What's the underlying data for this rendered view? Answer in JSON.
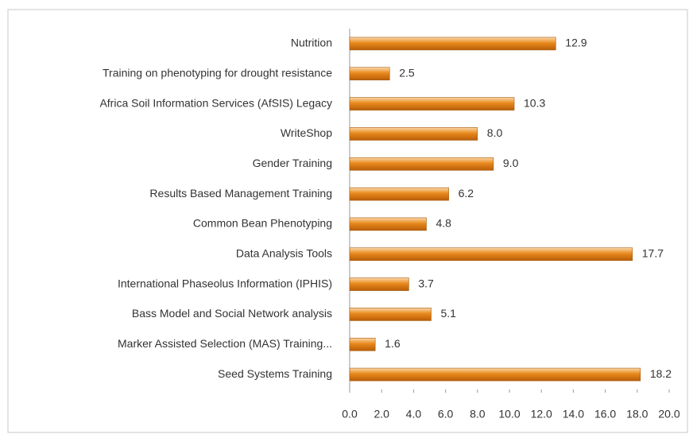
{
  "chart_data": {
    "type": "bar",
    "orientation": "horizontal",
    "categories": [
      "Nutrition",
      "Training on phenotyping for drought resistance",
      "Africa Soil Information Services (AfSIS) Legacy",
      "WriteShop",
      "Gender Training",
      "Results Based Management Training",
      "Common Bean Phenotyping",
      "Data Analysis Tools",
      "International Phaseolus Information  (IPHIS)",
      "Bass Model and Social Network analysis",
      "Marker Assisted Selection (MAS) Training...",
      "Seed Systems Training"
    ],
    "values": [
      12.9,
      2.5,
      10.3,
      8.0,
      9.0,
      6.2,
      4.8,
      17.7,
      3.7,
      5.1,
      1.6,
      18.2
    ],
    "value_labels": [
      "12.9",
      "2.5",
      "10.3",
      "8.0",
      "9.0",
      "6.2",
      "4.8",
      "17.7",
      "3.7",
      "5.1",
      "1.6",
      "18.2"
    ],
    "color": "#e8891c",
    "xlim": [
      0,
      20
    ],
    "xticks": [
      {
        "value": 0,
        "label": "0.0"
      },
      {
        "value": 2,
        "label": "2.0"
      },
      {
        "value": 4,
        "label": "4.0"
      },
      {
        "value": 6,
        "label": "6.0"
      },
      {
        "value": 8,
        "label": "8.0"
      },
      {
        "value": 10,
        "label": "10.0"
      },
      {
        "value": 12,
        "label": "12.0"
      },
      {
        "value": 14,
        "label": "14.0"
      },
      {
        "value": 16,
        "label": "16.0"
      },
      {
        "value": 18,
        "label": "18.0"
      },
      {
        "value": 20,
        "label": "20.0"
      }
    ],
    "grid": false
  }
}
